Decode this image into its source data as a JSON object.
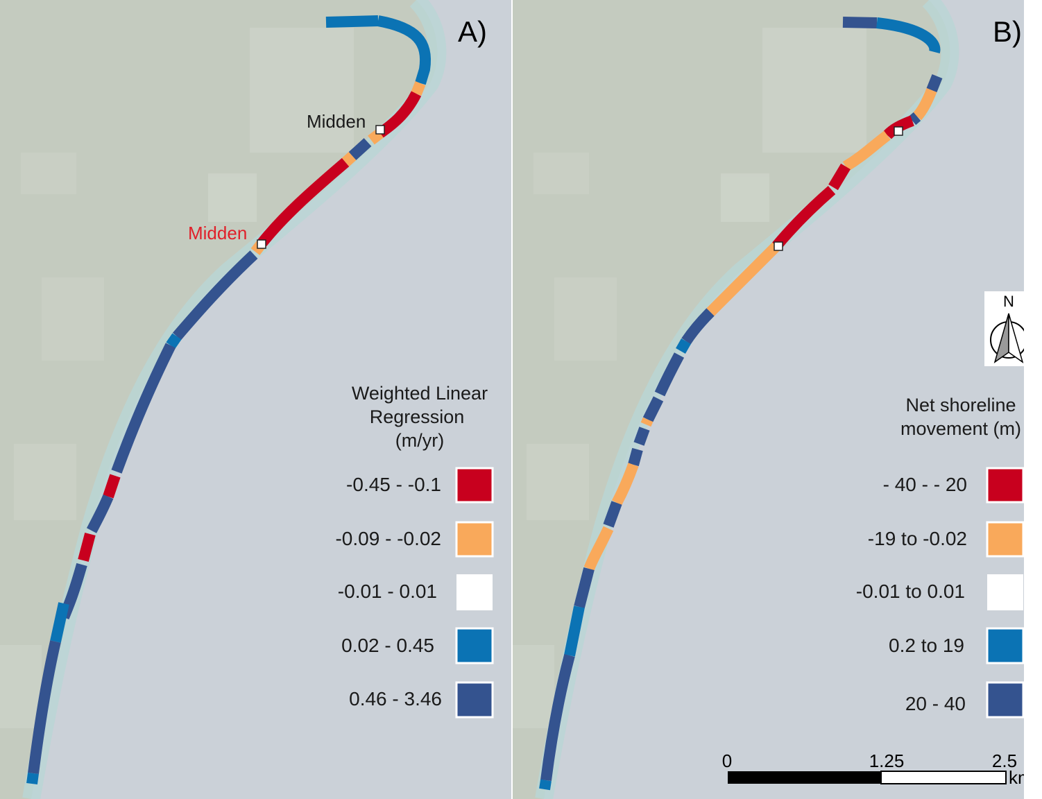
{
  "panels": [
    {
      "id": "A",
      "label": "A)",
      "legend": {
        "title_lines": [
          "Weighted Linear",
          "Regression",
          "(m/yr)"
        ],
        "classes": [
          {
            "label": "-0.45 - -0.1",
            "color": "#c8001e"
          },
          {
            "label": "-0.09 - -0.02",
            "color": "#f9a95b"
          },
          {
            "label": "-0.01 - 0.01",
            "color": "#ffffff"
          },
          {
            "label": "0.02 - 0.45",
            "color": "#0b73b4"
          },
          {
            "label": "0.46 - 3.46",
            "color": "#34538f"
          }
        ]
      },
      "markers": [
        {
          "label": "Midden",
          "label_color": "#1a1a1a"
        },
        {
          "label": "Midden",
          "label_color": "#e0202a"
        }
      ]
    },
    {
      "id": "B",
      "label": "B)",
      "legend": {
        "title_lines": [
          "Net shoreline",
          "movement (m)"
        ],
        "classes": [
          {
            "label": "- 40 - - 20",
            "color": "#c8001e"
          },
          {
            "label": "-19 to -0.02",
            "color": "#f9a95b"
          },
          {
            "label": "-0.01 to 0.01",
            "color": "#ffffff"
          },
          {
            "label": "0.2 to 19",
            "color": "#0b73b4"
          },
          {
            "label": "20 - 40",
            "color": "#34538f"
          }
        ]
      }
    }
  ],
  "north_arrow": {
    "label": "N"
  },
  "scale_bar": {
    "ticks": [
      "0",
      "1.25",
      "2.5"
    ],
    "unit": "km"
  },
  "colors": {
    "land": "#c4cbbf",
    "sea": "#cbd1d8",
    "coast_glow": "#b9d6d6"
  }
}
